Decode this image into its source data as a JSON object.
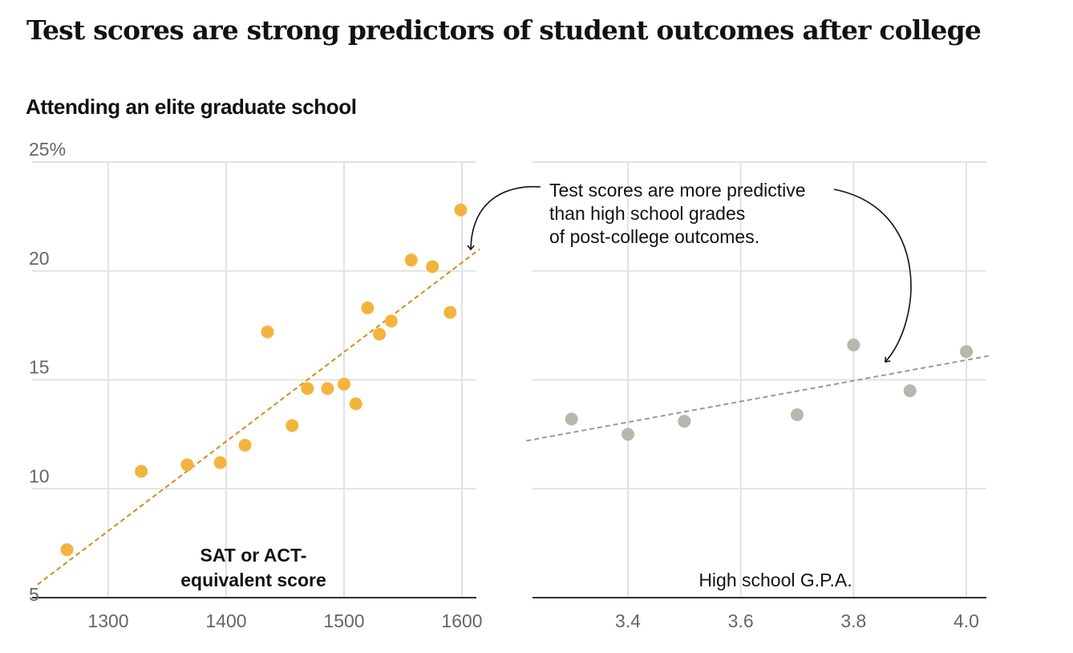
{
  "title": "Test scores are strong predictors of student outcomes after college",
  "subtitle": "Attending an elite graduate school",
  "annotation": {
    "lines": [
      "Test scores are more predictive",
      "than high school grades",
      "of post-college outcomes."
    ]
  },
  "colors": {
    "sat_points": "#f3b43e",
    "sat_trend": "#d98a1f",
    "gpa_points": "#b5b8ac",
    "gpa_trend": "#999999",
    "grid": "#e2e2e2",
    "axis": "#333333"
  },
  "chart_data": [
    {
      "type": "scatter",
      "xlabel": [
        "SAT or ACT-",
        "equivalent score"
      ],
      "ylabel": "",
      "y_tick_labels": [
        "25%",
        "20",
        "15",
        "10",
        "5"
      ],
      "y_ticks": [
        25,
        20,
        15,
        10,
        5
      ],
      "ylim": [
        5,
        25
      ],
      "x_ticks": [
        1300,
        1400,
        1500,
        1600
      ],
      "x_tick_labels": [
        "1300",
        "1400",
        "1500",
        "1600"
      ],
      "xlim": [
        1240,
        1612
      ],
      "grid": true,
      "trendline": [
        [
          1240,
          5.6
        ],
        [
          1615,
          21.0
        ]
      ],
      "points": [
        {
          "x": 1265,
          "y": 7.2
        },
        {
          "x": 1328,
          "y": 10.8
        },
        {
          "x": 1367,
          "y": 11.1
        },
        {
          "x": 1395,
          "y": 11.2
        },
        {
          "x": 1416,
          "y": 12.0
        },
        {
          "x": 1435,
          "y": 17.2
        },
        {
          "x": 1456,
          "y": 12.9
        },
        {
          "x": 1469,
          "y": 14.6
        },
        {
          "x": 1486,
          "y": 14.6
        },
        {
          "x": 1500,
          "y": 14.8
        },
        {
          "x": 1510,
          "y": 13.9
        },
        {
          "x": 1520,
          "y": 18.3
        },
        {
          "x": 1530,
          "y": 17.1
        },
        {
          "x": 1540,
          "y": 17.7
        },
        {
          "x": 1557,
          "y": 20.5
        },
        {
          "x": 1575,
          "y": 20.2
        },
        {
          "x": 1590,
          "y": 18.1
        },
        {
          "x": 1599,
          "y": 22.8
        }
      ]
    },
    {
      "type": "scatter",
      "xlabel": [
        "High school G.P.A."
      ],
      "ylabel": "",
      "ylim": [
        5,
        25
      ],
      "x_ticks": [
        3.4,
        3.6,
        3.8,
        4.0
      ],
      "x_tick_labels": [
        "3.4",
        "3.6",
        "3.8",
        "4.0"
      ],
      "xlim": [
        3.22,
        4.04
      ],
      "grid": true,
      "trendline": [
        [
          3.22,
          12.2
        ],
        [
          4.04,
          16.1
        ]
      ],
      "points": [
        {
          "x": 3.3,
          "y": 13.2
        },
        {
          "x": 3.4,
          "y": 12.5
        },
        {
          "x": 3.5,
          "y": 13.1
        },
        {
          "x": 3.7,
          "y": 13.4
        },
        {
          "x": 3.8,
          "y": 16.6
        },
        {
          "x": 3.9,
          "y": 14.5
        },
        {
          "x": 4.0,
          "y": 16.3
        }
      ]
    }
  ]
}
